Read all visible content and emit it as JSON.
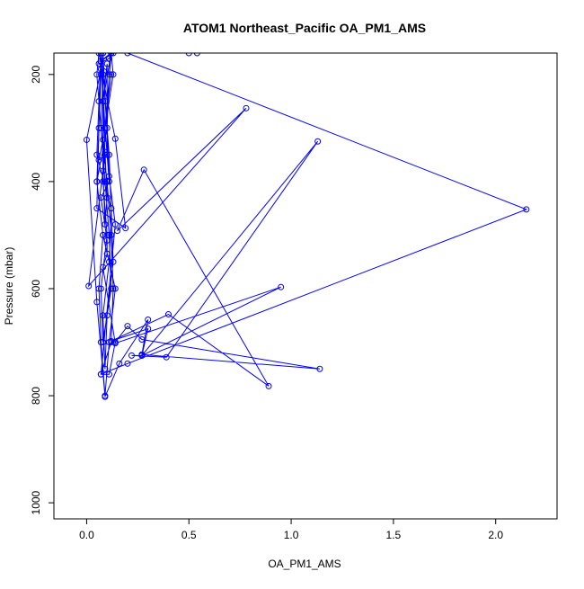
{
  "chart_data": {
    "type": "line",
    "title": "ATOM1 Northeast_Pacific OA_PM1_AMS",
    "xlabel": "OA_PM1_AMS",
    "ylabel": "Pressure (mbar)",
    "xlim": [
      -0.16,
      2.3
    ],
    "ylim": [
      1030,
      160
    ],
    "y_reversed": true,
    "x_ticks": [
      0.0,
      0.5,
      1.0,
      1.5,
      2.0
    ],
    "x_tick_labels": [
      "0.0",
      "0.5",
      "1.0",
      "1.5",
      "2.0"
    ],
    "y_ticks": [
      200,
      400,
      600,
      800,
      1000
    ],
    "y_tick_labels": [
      "200",
      "400",
      "600",
      "800",
      "1000"
    ],
    "grid": false,
    "marker": "open-circle",
    "color": "#0000ff",
    "series": [
      {
        "x": [
          0.54,
          0.45,
          0.35,
          0.25,
          0.15,
          0.07,
          0.13,
          0.05,
          0.12,
          0.11,
          0.06,
          0.12,
          0.09,
          0.12,
          0.08,
          0.1,
          0.1,
          0.06,
          0.08,
          0.09,
          0.1,
          0.09,
          0.08,
          0.08,
          0.08,
          0.11,
          0.14,
          0.07,
          0.11,
          0.14,
          0.2,
          0.27,
          1.14,
          0.27,
          0.3,
          0.16,
          0.09,
          0.05,
          0.0,
          0.07,
          0.14,
          0.19,
          0.05,
          0.07,
          0.09,
          0.01,
          0.78,
          0.15,
          0.28,
          0.89,
          0.4,
          0.12,
          0.3,
          0.27,
          0.22,
          0.39,
          1.13,
          0.27,
          0.95,
          0.14,
          0.08,
          0.1,
          0.1,
          0.07,
          0.11,
          0.09,
          0.13,
          0.12,
          0.11,
          0.1,
          0.05,
          0.08,
          0.06,
          0.07,
          0.09,
          0.11,
          0.14,
          0.08,
          0.05,
          0.06,
          0.07,
          0.08,
          0.09,
          0.11,
          0.12,
          0.13,
          0.1,
          0.09,
          0.08,
          0.11,
          0.12,
          0.05,
          0.06,
          0.07,
          0.09,
          0.08,
          0.1,
          0.07,
          0.08,
          0.12,
          0.11,
          0.09,
          0.07,
          0.08,
          0.06,
          0.05,
          0.07,
          0.1,
          0.12,
          0.13,
          0.12,
          0.07,
          0.2,
          2.15,
          0.2,
          0.5
        ],
        "y": [
          160,
          150,
          150,
          150,
          150,
          175,
          160,
          155,
          160,
          170,
          180,
          200,
          300,
          160,
          250,
          180,
          350,
          360,
          322,
          345,
          430,
          480,
          380,
          250,
          160,
          390,
          480,
          760,
          760,
          700,
          670,
          695,
          750,
          723,
          658,
          740,
          802,
          625,
          322,
          190,
          320,
          487,
          450,
          160,
          350,
          595,
          263,
          492,
          378,
          782,
          648,
          698,
          675,
          725,
          725,
          728,
          325,
          725,
          597,
          702,
          560,
          535,
          510,
          430,
          400,
          300,
          200,
          160,
          200,
          300,
          400,
          500,
          600,
          700,
          800,
          700,
          600,
          500,
          400,
          300,
          200,
          160,
          250,
          350,
          450,
          550,
          650,
          750,
          650,
          550,
          450,
          350,
          250,
          160,
          300,
          400,
          500,
          600,
          700,
          600,
          500,
          400,
          300,
          200,
          160,
          200,
          300,
          400,
          500,
          600,
          700,
          760,
          740,
          452,
          160,
          160
        ]
      }
    ]
  }
}
